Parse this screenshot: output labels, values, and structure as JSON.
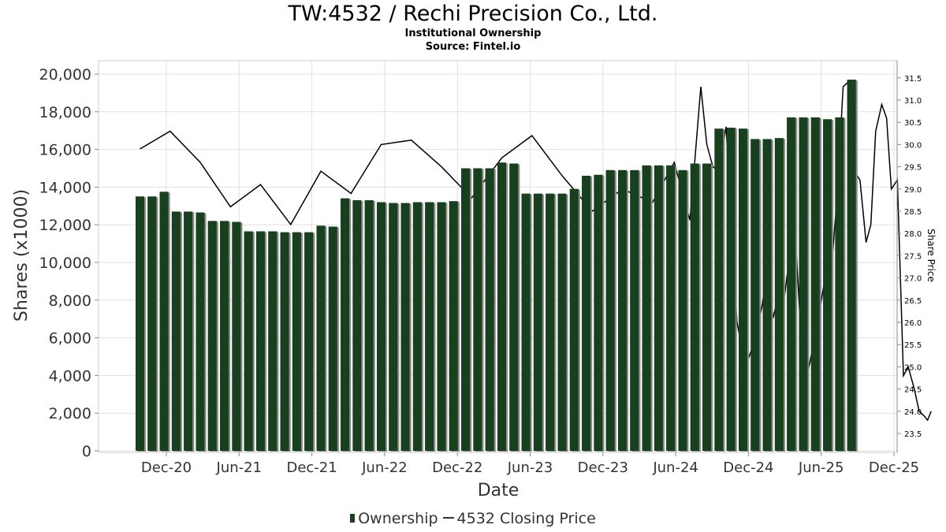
{
  "title": "TW:4532 / Rechi Precision Co., Ltd.",
  "subtitle": "Institutional Ownership",
  "source": "Source: Fintel.io",
  "colors": {
    "bar": "#18401f",
    "bar_shadow": "#8c8c8c",
    "price_line": "#000000",
    "grid": "#e0e0e0"
  },
  "chart_data": {
    "type": "bar",
    "xlabel": "Date",
    "ylabel": "Shares (x1000)",
    "y2label": "Share Price",
    "ylim": [
      0,
      20700
    ],
    "y2lim": [
      23.2,
      31.8
    ],
    "grid": true,
    "legend_position": "bottom",
    "x_tick_labels": [
      "Dec-20",
      "Jun-21",
      "Dec-21",
      "Jun-22",
      "Dec-22",
      "Jun-23",
      "Dec-23",
      "Jun-24",
      "Dec-24",
      "Jun-25",
      "Dec-25"
    ],
    "y_tick_labels": [
      "0",
      "2,000",
      "4,000",
      "6,000",
      "8,000",
      "10,000",
      "12,000",
      "14,000",
      "16,000",
      "18,000",
      "20,000"
    ],
    "y2_tick_labels": [
      "23.5",
      "24.0",
      "24.5",
      "25.0",
      "25.5",
      "26.0",
      "26.5",
      "27.0",
      "27.5",
      "28.0",
      "28.5",
      "29.0",
      "29.5",
      "30.0",
      "30.5",
      "31.0",
      "31.5"
    ],
    "series": [
      {
        "name": "Ownership",
        "type": "bar",
        "values": [
          13500,
          13500,
          13750,
          12700,
          12700,
          12650,
          12200,
          12200,
          12150,
          11650,
          11650,
          11650,
          11600,
          11600,
          11600,
          11950,
          11900,
          13400,
          13300,
          13300,
          13200,
          13150,
          13150,
          13200,
          13200,
          13200,
          13250,
          15000,
          15000,
          15000,
          15300,
          15250,
          13650,
          13650,
          13650,
          13650,
          13900,
          14600,
          14650,
          14900,
          14900,
          14900,
          15150,
          15150,
          15150,
          14900,
          15250,
          15250,
          17100,
          17150,
          17100,
          16550,
          16550,
          16600,
          17700,
          17700,
          17700,
          17600,
          17700,
          19700
        ]
      },
      {
        "name": "4532 Closing Price",
        "type": "line",
        "points": [
          [
            0,
            29.9
          ],
          [
            2.5,
            30.3
          ],
          [
            5,
            29.6
          ],
          [
            7.5,
            28.6
          ],
          [
            10,
            29.1
          ],
          [
            12.5,
            28.2
          ],
          [
            15,
            29.4
          ],
          [
            17.5,
            28.9
          ],
          [
            20,
            30.0
          ],
          [
            22.5,
            30.1
          ],
          [
            25,
            29.5
          ],
          [
            27.5,
            28.8
          ],
          [
            30,
            29.7
          ],
          [
            32.5,
            30.2
          ],
          [
            35,
            29.3
          ],
          [
            37.5,
            28.5
          ],
          [
            40,
            29.0
          ],
          [
            42.5,
            28.7
          ],
          [
            44.3,
            29.6
          ],
          [
            45.6,
            28.3
          ],
          [
            46.5,
            31.3
          ],
          [
            47,
            30.0
          ],
          [
            47.5,
            29.5
          ],
          [
            48,
            29.4
          ],
          [
            48.6,
            30.4
          ],
          [
            49.0,
            28.4
          ],
          [
            49.5,
            26.0
          ],
          [
            50.2,
            25.0
          ],
          [
            51,
            25.6
          ],
          [
            51.6,
            26.4
          ],
          [
            52.0,
            27.2
          ],
          [
            52.5,
            26.1
          ],
          [
            53.0,
            26.7
          ],
          [
            53.4,
            26.5
          ],
          [
            54.0,
            27.8
          ],
          [
            54.4,
            27.7
          ],
          [
            54.9,
            25.2
          ],
          [
            55.4,
            24.9
          ],
          [
            56.2,
            26.0
          ],
          [
            56.8,
            27.0
          ],
          [
            57.3,
            27.1
          ],
          [
            57.8,
            28.8
          ],
          [
            58.3,
            31.3
          ],
          [
            58.7,
            31.4
          ],
          [
            59.2,
            29.4
          ],
          [
            59.7,
            29.2
          ],
          [
            60.2,
            27.8
          ],
          [
            60.6,
            28.2
          ],
          [
            61.0,
            30.3
          ],
          [
            61.5,
            30.9
          ],
          [
            61.9,
            30.6
          ],
          [
            62.3,
            29.0
          ],
          [
            62.8,
            29.2
          ],
          [
            63.3,
            24.8
          ],
          [
            63.7,
            25.0
          ],
          [
            64.2,
            24.5
          ],
          [
            64.6,
            24.0
          ],
          [
            65.0,
            23.9
          ],
          [
            65.3,
            23.8
          ],
          [
            65.6,
            24.0
          ]
        ]
      }
    ]
  }
}
